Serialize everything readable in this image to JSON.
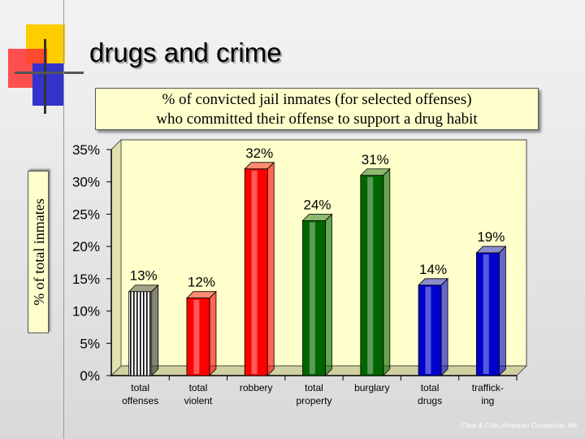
{
  "slide": {
    "title": "drugs and crime",
    "credit_authors": "Clear & Cole, ",
    "credit_book": "American Corrections",
    "credit_edition": ", 6th"
  },
  "colors": {
    "chart_background": "#ffffcc",
    "title_box": "#ffffcc",
    "deco_yellow": "#ffcc00",
    "deco_red": "#ff3333",
    "deco_blue": "#3333cc"
  },
  "chart_data": {
    "type": "bar",
    "title_line1": "% of convicted jail inmates (for selected offenses)",
    "title_line2": "who committed their offense to support a drug habit",
    "ylabel": "% of total inmates",
    "xlabel": "",
    "ylim": [
      0,
      35
    ],
    "yticks": [
      {
        "value": 0,
        "label": "0%"
      },
      {
        "value": 5,
        "label": "5%"
      },
      {
        "value": 10,
        "label": "10%"
      },
      {
        "value": 15,
        "label": "15%"
      },
      {
        "value": 20,
        "label": "20%"
      },
      {
        "value": 25,
        "label": "25%"
      },
      {
        "value": 30,
        "label": "30%"
      },
      {
        "value": 35,
        "label": "35%"
      }
    ],
    "categories": [
      {
        "line1": "total",
        "line2": "offenses"
      },
      {
        "line1": "total",
        "line2": "violent"
      },
      {
        "line1": "robbery",
        "line2": ""
      },
      {
        "line1": "total",
        "line2": "property"
      },
      {
        "line1": "burglary",
        "line2": ""
      },
      {
        "line1": "total",
        "line2": "drugs"
      },
      {
        "line1": "traffick-",
        "line2": "ing"
      }
    ],
    "values": [
      13,
      12,
      32,
      24,
      31,
      14,
      19
    ],
    "data_labels": [
      "13%",
      "12%",
      "32%",
      "24%",
      "31%",
      "14%",
      "19%"
    ],
    "bar_colors": [
      "#ffffff",
      "#ff0000",
      "#ff0000",
      "#006600",
      "#006600",
      "#0000cc",
      "#0000cc"
    ],
    "bar_patterns": [
      "stripes",
      "solid",
      "solid",
      "solid",
      "solid",
      "solid",
      "solid"
    ],
    "grid": false,
    "legend": "none"
  }
}
